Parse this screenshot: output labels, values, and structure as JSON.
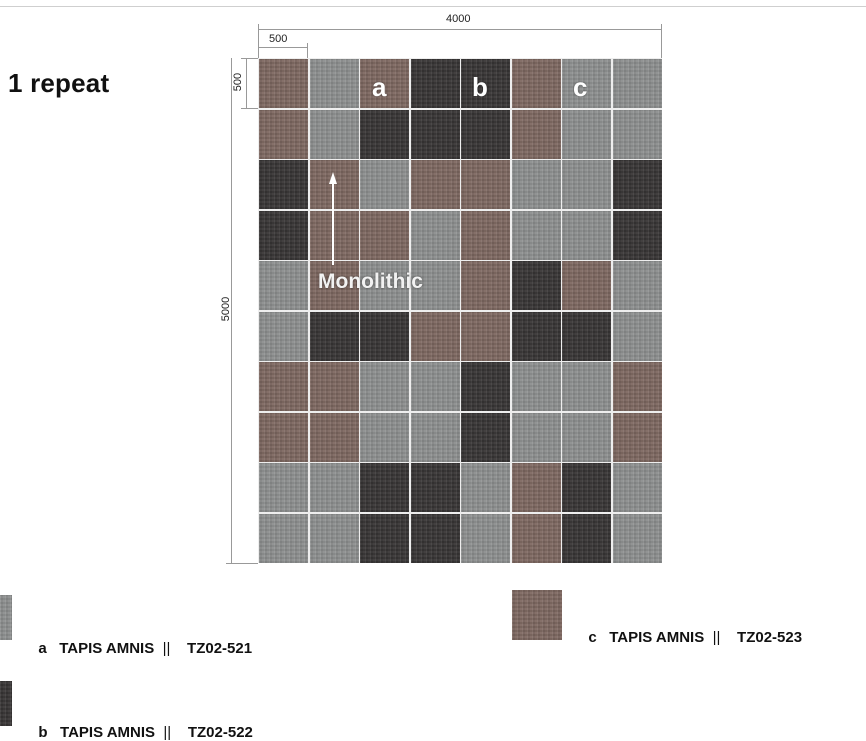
{
  "title": "1 repeat",
  "dimensions": {
    "total_width": "4000",
    "tile_width": "500",
    "tile_height": "500",
    "total_height": "5000"
  },
  "tile_labels": [
    "a",
    "b",
    "c"
  ],
  "annotation": "Monolithic",
  "colors": {
    "a": "#8e9090",
    "b": "#3d3a3a",
    "c": "#806a63",
    "grout": "#eeeeee"
  },
  "grid": {
    "columns": 8,
    "rows": 10,
    "layout": [
      "cacbbcaa",
      "cabbbcaa",
      "bcaccaab",
      "bccacaab",
      "acaacbca",
      "abbccbba",
      "ccaabaac",
      "ccaabaac",
      "aabbacba",
      "aabbacba"
    ]
  },
  "legend": [
    {
      "letter": "a",
      "product": "TAPIS AMNIS",
      "separator": "||",
      "code": "TZ02-521"
    },
    {
      "letter": "b",
      "product": "TAPIS AMNIS",
      "separator": "||",
      "code": "TZ02-522"
    },
    {
      "letter": "c",
      "product": "TAPIS AMNIS",
      "separator": "||",
      "code": "TZ02-523"
    }
  ]
}
